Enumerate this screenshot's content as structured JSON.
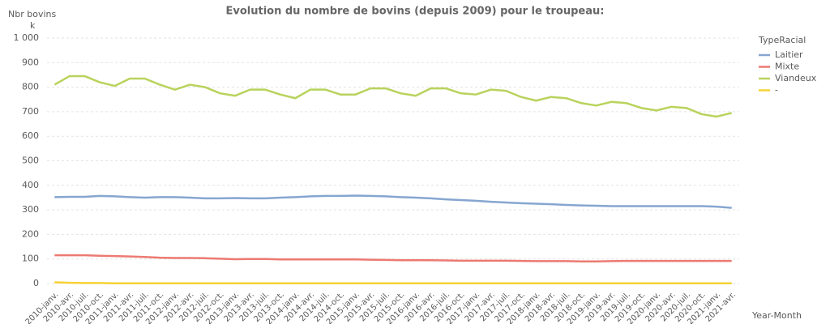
{
  "chart_data": {
    "type": "line",
    "title": "Evolution du nombre de bovins (depuis 2009) pour le troupeau:",
    "y_label": "Nbr bovins",
    "y_unit": "k",
    "x_label": "Year-Month",
    "legend_title": "TypeRacial",
    "categories": [
      "2010-janv.",
      "2010-avr.",
      "2010-juil.",
      "2010-oct.",
      "2011-janv.",
      "2011-avr.",
      "2011-juil.",
      "2011-oct.",
      "2012-janv.",
      "2012-avr.",
      "2012-juil.",
      "2012-oct.",
      "2013-janv.",
      "2013-avr.",
      "2013-juil.",
      "2013-oct.",
      "2014-janv.",
      "2014-avr.",
      "2014-juil.",
      "2014-oct.",
      "2015-janv.",
      "2015-avr.",
      "2015-juil.",
      "2015-oct.",
      "2016-janv.",
      "2016-avr.",
      "2016-juil.",
      "2016-oct.",
      "2017-janv.",
      "2017-avr.",
      "2017-juil.",
      "2017-oct.",
      "2018-janv.",
      "2018-avr.",
      "2018-juil.",
      "2018-oct.",
      "2019-janv.",
      "2019-avr.",
      "2019-juil.",
      "2019-oct.",
      "2020-janv.",
      "2020-avr.",
      "2020-juil.",
      "2020-oct.",
      "2021-janv.",
      "2021-avr."
    ],
    "series": [
      {
        "name": "Laitier",
        "color": "#86a6d0",
        "values": [
          352,
          353,
          353,
          357,
          355,
          352,
          350,
          352,
          352,
          350,
          347,
          347,
          348,
          347,
          347,
          350,
          352,
          355,
          357,
          357,
          358,
          357,
          355,
          352,
          350,
          347,
          343,
          340,
          337,
          333,
          330,
          327,
          325,
          323,
          320,
          318,
          317,
          315,
          315,
          315,
          315,
          315,
          315,
          315,
          313,
          308
        ]
      },
      {
        "name": "Mixte",
        "color": "#ec7a72",
        "values": [
          115,
          115,
          115,
          113,
          112,
          110,
          108,
          105,
          104,
          104,
          103,
          101,
          99,
          100,
          100,
          98,
          98,
          98,
          98,
          98,
          98,
          97,
          96,
          95,
          95,
          95,
          94,
          93,
          93,
          93,
          93,
          92,
          91,
          91,
          91,
          90,
          90,
          91,
          92,
          92,
          92,
          92,
          92,
          92,
          92,
          92
        ]
      },
      {
        "name": "Viandeux",
        "color": "#b8d35c",
        "values": [
          810,
          845,
          845,
          820,
          805,
          835,
          835,
          810,
          790,
          810,
          800,
          775,
          765,
          790,
          790,
          770,
          755,
          790,
          790,
          770,
          770,
          795,
          795,
          775,
          765,
          795,
          795,
          775,
          770,
          790,
          785,
          760,
          745,
          760,
          755,
          735,
          725,
          740,
          735,
          715,
          705,
          720,
          715,
          690,
          680,
          695
        ]
      },
      {
        "name": "-",
        "color": "#f6d235",
        "values": [
          5,
          3,
          2,
          2,
          1,
          1,
          1,
          1,
          1,
          1,
          1,
          1,
          1,
          1,
          1,
          1,
          1,
          1,
          1,
          1,
          1,
          1,
          1,
          1,
          1,
          1,
          1,
          1,
          1,
          1,
          1,
          1,
          1,
          1,
          1,
          1,
          1,
          1,
          1,
          1,
          1,
          1,
          1,
          1,
          1,
          1
        ]
      }
    ],
    "ylim": [
      0,
      1000
    ],
    "yticks": [
      0,
      100,
      200,
      300,
      400,
      500,
      600,
      700,
      800,
      900,
      {
        "value": 1000,
        "label": "1 000"
      }
    ],
    "grid": true
  }
}
